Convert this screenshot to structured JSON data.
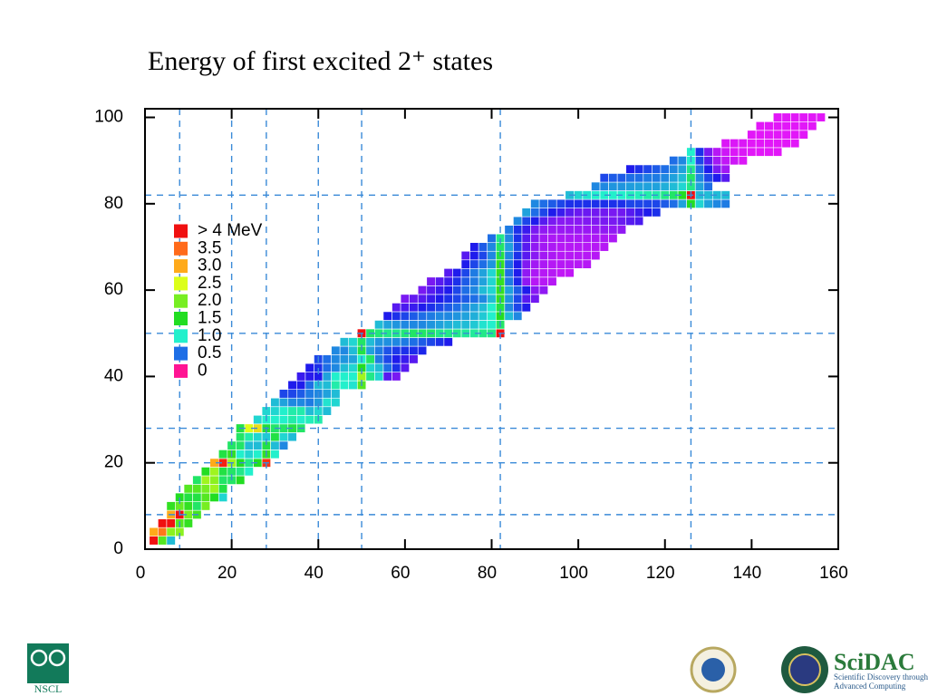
{
  "chart_data": {
    "type": "heatmap",
    "title": "Energy of first excited 2⁺ states",
    "xlim": [
      0,
      160
    ],
    "xticks": [
      0,
      20,
      40,
      60,
      80,
      100,
      120,
      140,
      160
    ],
    "ylim": [
      0,
      102
    ],
    "yticks": [
      0,
      20,
      40,
      60,
      80,
      100
    ],
    "vlines": [
      8,
      20,
      28,
      40,
      50,
      82,
      126
    ],
    "hlines": [
      8,
      20,
      28,
      50,
      82
    ],
    "legend": [
      {
        "label": "> 4 MeV",
        "value": 4,
        "color": "#f01010"
      },
      {
        "label": "3.5",
        "value": 3.5,
        "color": "#ff6a1a"
      },
      {
        "label": "3.0",
        "value": 3,
        "color": "#ffaa1a"
      },
      {
        "label": "2.5",
        "value": 2.5,
        "color": "#dcff1a"
      },
      {
        "label": "2.0",
        "value": 2,
        "color": "#77ee22"
      },
      {
        "label": "1.5",
        "value": 1.5,
        "color": "#22dd22"
      },
      {
        "label": "1.0",
        "value": 1,
        "color": "#22f0cc"
      },
      {
        "label": "0.5",
        "value": 0.5,
        "color": "#1e6ee6"
      },
      {
        "label": "0",
        "value": 0,
        "color": "#ff1493"
      }
    ],
    "rows": [
      {
        "z": 2,
        "n0": 2,
        "values": [
          4.5,
          1.8,
          0.8
        ]
      },
      {
        "z": 4,
        "n0": 2,
        "values": [
          3,
          3.4,
          2.1,
          2.1
        ]
      },
      {
        "z": 6,
        "n0": 4,
        "values": [
          4.4,
          4.4,
          1.8,
          1.6
        ]
      },
      {
        "z": 8,
        "n0": 6,
        "values": [
          3,
          6.9,
          2.0,
          1.7
        ]
      },
      {
        "z": 10,
        "n0": 6,
        "values": [
          1.6,
          1.9,
          1.6,
          1.3,
          2.0
        ]
      },
      {
        "z": 12,
        "n0": 8,
        "values": [
          1.5,
          1.4,
          1.4,
          1.8,
          1.5,
          0.9
        ]
      },
      {
        "z": 14,
        "n0": 10,
        "values": [
          1.8,
          1.8,
          2.0,
          2.2,
          1.4
        ]
      },
      {
        "z": 16,
        "n0": 12,
        "values": [
          1.3,
          2.2,
          2.1,
          1.3,
          1.3,
          1.5
        ]
      },
      {
        "z": 18,
        "n0": 14,
        "values": [
          1.5,
          2.2,
          1.4,
          1.3,
          1.2,
          1.0
        ]
      },
      {
        "z": 20,
        "n0": 16,
        "values": [
          3.0,
          3.9,
          2.2,
          1.5,
          1.2,
          1.5,
          3.8
        ]
      },
      {
        "z": 22,
        "n0": 18,
        "values": [
          1.4,
          1.6,
          1.0,
          0.9,
          1.0,
          1.6,
          1.0
        ]
      },
      {
        "z": 24,
        "n0": 20,
        "values": [
          1.3,
          1.3,
          0.8,
          0.8,
          1.4,
          0.8,
          0.6
        ]
      },
      {
        "z": 26,
        "n0": 22,
        "values": [
          1.3,
          1.1,
          0.9,
          0.85,
          1.4,
          0.9,
          0.8
        ]
      },
      {
        "z": 28,
        "n0": 22,
        "values": [
          1.4,
          2.5,
          2.7,
          1.45,
          1.3,
          1.3,
          1.4,
          1.3
        ]
      },
      {
        "z": 30,
        "n0": 26,
        "values": [
          0.9,
          1.0,
          1.0,
          1.0,
          1.1,
          1.0,
          1.05,
          1.1
        ]
      },
      {
        "z": 32,
        "n0": 28,
        "values": [
          0.9,
          0.9,
          1.0,
          1.1,
          1.1,
          0.8,
          0.9,
          0.8
        ]
      },
      {
        "z": 34,
        "n0": 30,
        "values": [
          0.8,
          0.7,
          0.6,
          0.6,
          0.55,
          0.67,
          0.95,
          0.9
        ]
      },
      {
        "z": 36,
        "n0": 32,
        "values": [
          0.4,
          0.4,
          0.45,
          0.55,
          0.6,
          0.7,
          0.8
        ]
      },
      {
        "z": 38,
        "n0": 34,
        "values": [
          0.3,
          0.3,
          0.5,
          0.8,
          0.8,
          1.1,
          1.0,
          0.95,
          1.8
        ]
      },
      {
        "z": 40,
        "n0": 36,
        "values": [
          0.25,
          0.28,
          0.3,
          0.7,
          1.0,
          1.0,
          1.0,
          2.2,
          1.2,
          0.9,
          0.2,
          0.15
        ]
      },
      {
        "z": 42,
        "n0": 38,
        "values": [
          0.3,
          0.35,
          0.5,
          0.6,
          0.8,
          0.9,
          1.5,
          0.9,
          0.8,
          0.5,
          0.35,
          0.2
        ]
      },
      {
        "z": 44,
        "n0": 40,
        "values": [
          0.4,
          0.5,
          0.6,
          0.65,
          0.7,
          1.0,
          1.3,
          0.55,
          0.4,
          0.3,
          0.25,
          0.2
        ]
      },
      {
        "z": 46,
        "n0": 44,
        "values": [
          0.6,
          0.6,
          0.8,
          1.4,
          0.7,
          0.55,
          0.43,
          0.37,
          0.35,
          0.34,
          0.33
        ]
      },
      {
        "z": 48,
        "n0": 46,
        "values": [
          0.8,
          0.9,
          1.3,
          0.8,
          0.65,
          0.63,
          0.6,
          0.55,
          0.5,
          0.45,
          0.4,
          0.35,
          0.3
        ]
      },
      {
        "z": 50,
        "n0": 50,
        "values": [
          4.0,
          1.3,
          1.25,
          1.2,
          1.2,
          1.25,
          1.3,
          1.3,
          1.3,
          1.2,
          1.2,
          1.2,
          1.15,
          1.15,
          1.2,
          1.2,
          4.0
        ]
      },
      {
        "z": 52,
        "n0": 54,
        "values": [
          0.8,
          0.7,
          0.65,
          0.6,
          0.6,
          0.6,
          0.65,
          0.7,
          0.75,
          0.8,
          0.8,
          0.85,
          0.95,
          1.0,
          1.3
        ]
      },
      {
        "z": 54,
        "n0": 56,
        "values": [
          0.3,
          0.35,
          0.4,
          0.45,
          0.5,
          0.55,
          0.6,
          0.6,
          0.65,
          0.7,
          0.75,
          0.85,
          1.0,
          1.5,
          0.8,
          0.6
        ]
      },
      {
        "z": 56,
        "n0": 58,
        "values": [
          0.2,
          0.22,
          0.25,
          0.3,
          0.35,
          0.4,
          0.45,
          0.5,
          0.6,
          0.7,
          0.8,
          1.0,
          1.4,
          0.6,
          0.4,
          0.3
        ]
      },
      {
        "z": 58,
        "n0": 60,
        "values": [
          0.15,
          0.18,
          0.2,
          0.25,
          0.3,
          0.35,
          0.4,
          0.45,
          0.5,
          0.6,
          0.8,
          1.6,
          0.65,
          0.4,
          0.2,
          0.16
        ]
      },
      {
        "z": 60,
        "n0": 64,
        "values": [
          0.15,
          0.2,
          0.25,
          0.3,
          0.4,
          0.5,
          0.6,
          0.8,
          0.9,
          1.6,
          0.7,
          0.45,
          0.3,
          0.13,
          0.12
        ]
      },
      {
        "z": 62,
        "n0": 66,
        "values": [
          0.15,
          0.2,
          0.25,
          0.35,
          0.45,
          0.55,
          0.7,
          0.9,
          1.6,
          0.55,
          0.33,
          0.12,
          0.08,
          0.08,
          0.08
        ]
      },
      {
        "z": 64,
        "n0": 70,
        "values": [
          0.2,
          0.3,
          0.4,
          0.55,
          0.7,
          0.9,
          1.6,
          0.5,
          0.3,
          0.12,
          0.09,
          0.08,
          0.08,
          0.07,
          0.07
        ]
      },
      {
        "z": 66,
        "n0": 74,
        "values": [
          0.3,
          0.4,
          0.5,
          0.65,
          1.6,
          0.5,
          0.3,
          0.14,
          0.1,
          0.09,
          0.08,
          0.08,
          0.08,
          0.08,
          0.08
        ]
      },
      {
        "z": 68,
        "n0": 74,
        "values": [
          0.2,
          0.3,
          0.4,
          0.6,
          1.4,
          0.6,
          0.35,
          0.2,
          0.13,
          0.1,
          0.09,
          0.08,
          0.08,
          0.08,
          0.08,
          0.08
        ]
      },
      {
        "z": 70,
        "n0": 76,
        "values": [
          0.3,
          0.45,
          0.6,
          1.3,
          0.7,
          0.4,
          0.2,
          0.12,
          0.1,
          0.09,
          0.08,
          0.08,
          0.08,
          0.08,
          0.08,
          0.08
        ]
      },
      {
        "z": 72,
        "n0": 80,
        "values": [
          0.5,
          1.2,
          0.6,
          0.35,
          0.2,
          0.13,
          0.1,
          0.09,
          0.09,
          0.09,
          0.09,
          0.09,
          0.09,
          0.09,
          0.09
        ]
      },
      {
        "z": 74,
        "n0": 84,
        "values": [
          0.55,
          0.35,
          0.25,
          0.15,
          0.12,
          0.11,
          0.11,
          0.11,
          0.11,
          0.11,
          0.11,
          0.12,
          0.12,
          0.12
        ]
      },
      {
        "z": 76,
        "n0": 86,
        "values": [
          0.6,
          0.4,
          0.3,
          0.2,
          0.15,
          0.13,
          0.13,
          0.13,
          0.14,
          0.14,
          0.15,
          0.15,
          0.17,
          0.2,
          0.22
        ]
      },
      {
        "z": 78,
        "n0": 88,
        "values": [
          0.7,
          0.5,
          0.4,
          0.3,
          0.25,
          0.2,
          0.17,
          0.17,
          0.16,
          0.16,
          0.15,
          0.16,
          0.2,
          0.25,
          0.3,
          0.35
        ]
      },
      {
        "z": 80,
        "n0": 90,
        "values": [
          0.6,
          0.5,
          0.45,
          0.4,
          0.35,
          0.35,
          0.35,
          0.35,
          0.35,
          0.35,
          0.35,
          0.4,
          0.4,
          0.4,
          0.4,
          0.45,
          0.5,
          0.7,
          1.5,
          0.9,
          0.7,
          0.6,
          0.55
        ]
      },
      {
        "z": 82,
        "n0": 98,
        "values": [
          0.8,
          0.9,
          0.95,
          1.0,
          1.0,
          1.0,
          1.0,
          1.05,
          1.05,
          1.1,
          1.1,
          1.2,
          1.3,
          1.5,
          4.1,
          0.8,
          0.8,
          0.8,
          0.8
        ]
      },
      {
        "z": 84,
        "n0": 104,
        "values": [
          0.6,
          0.6,
          0.65,
          0.65,
          0.68,
          0.7,
          0.7,
          0.7,
          0.75,
          0.8,
          0.9,
          1.2,
          0.7,
          0.5
        ]
      },
      {
        "z": 86,
        "n0": 106,
        "values": [
          0.4,
          0.45,
          0.45,
          0.5,
          0.5,
          0.55,
          0.55,
          0.6,
          0.7,
          0.8,
          1.3,
          0.6,
          0.4,
          0.3,
          0.2
        ]
      },
      {
        "z": 88,
        "n0": 112,
        "values": [
          0.3,
          0.35,
          0.4,
          0.45,
          0.5,
          0.6,
          0.7,
          1.2,
          0.5,
          0.3,
          0.15,
          0.1
        ]
      },
      {
        "z": 90,
        "n0": 122,
        "values": [
          0.5,
          0.6,
          1.0,
          0.4,
          0.2,
          0.1,
          0.07,
          0.06,
          0.05
        ]
      },
      {
        "z": 92,
        "n0": 126,
        "values": [
          1.0,
          0.35,
          0.15,
          0.08,
          0.06,
          0.05,
          0.05,
          0.045,
          0.045,
          0.045,
          0.045
        ]
      },
      {
        "z": 94,
        "n0": 134,
        "values": [
          0.05,
          0.05,
          0.05,
          0.045,
          0.045,
          0.045,
          0.045,
          0.045,
          0.045
        ]
      },
      {
        "z": 96,
        "n0": 140,
        "values": [
          0.045,
          0.045,
          0.045,
          0.045,
          0.045,
          0.045,
          0.045
        ]
      },
      {
        "z": 98,
        "n0": 142,
        "values": [
          0.045,
          0.045,
          0.045,
          0.045,
          0.045,
          0.045,
          0.045
        ]
      },
      {
        "z": 100,
        "n0": 146,
        "values": [
          0.045,
          0.045,
          0.045,
          0.045,
          0.045,
          0.045
        ]
      }
    ]
  },
  "logos": {
    "nscl": "NSCL",
    "scidac": "SciDAC",
    "scidac_line1": "Scientific Discovery through",
    "scidac_line2": "Advanced Computing"
  }
}
